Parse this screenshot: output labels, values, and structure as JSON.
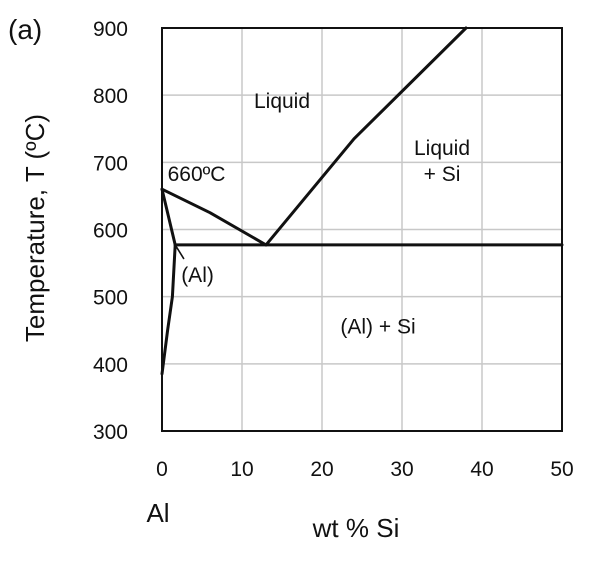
{
  "panel_label": "(a)",
  "chart_data": {
    "type": "line",
    "title": "",
    "xlabel": "wt % Si",
    "ylabel": "Temperature, T (ºC)",
    "x_end_label": "Al",
    "xlim": [
      0,
      50
    ],
    "ylim": [
      300,
      900
    ],
    "xticks": [
      0,
      10,
      20,
      30,
      40,
      50
    ],
    "yticks": [
      300,
      400,
      500,
      600,
      700,
      800,
      900
    ],
    "grid": true,
    "series": [
      {
        "values": [
          [
            0,
            660
          ],
          [
            6,
            625
          ],
          [
            13,
            577
          ]
        ]
      },
      {
        "values": [
          [
            13,
            577
          ],
          [
            24,
            735
          ],
          [
            38,
            900
          ]
        ]
      },
      {
        "values": [
          [
            1.65,
            577
          ],
          [
            50,
            577
          ]
        ]
      },
      {
        "values": [
          [
            0,
            660
          ],
          [
            1.65,
            577
          ]
        ]
      },
      {
        "values": [
          [
            1.65,
            577
          ],
          [
            1.3,
            500
          ],
          [
            0.7,
            450
          ],
          [
            0,
            385
          ]
        ]
      },
      {
        "values": [
          [
            1.65,
            577
          ],
          [
            2.7,
            557
          ]
        ]
      }
    ],
    "annotations": [
      {
        "text": "Liquid",
        "x": 15,
        "y": 781,
        "anchor": "middle"
      },
      {
        "text": "Liquid",
        "x": 35,
        "y": 711,
        "anchor": "middle"
      },
      {
        "text": "+ Si",
        "x": 35,
        "y": 672,
        "anchor": "middle"
      },
      {
        "text": "660ºC",
        "x": 0.7,
        "y": 672,
        "anchor": "start"
      },
      {
        "text": "(Al)",
        "x": 2.4,
        "y": 522,
        "anchor": "start"
      },
      {
        "text": "(Al) + Si",
        "x": 27,
        "y": 445,
        "anchor": "middle"
      }
    ]
  }
}
